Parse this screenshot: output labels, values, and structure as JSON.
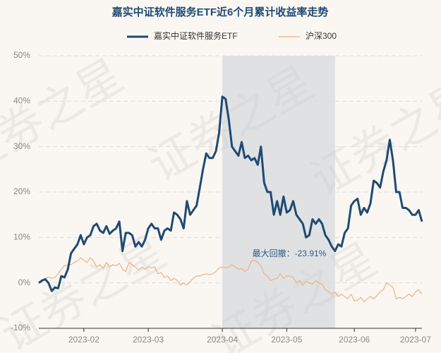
{
  "chart_data": {
    "type": "line",
    "title": "嘉实中证软件服务ETF近6个月累计收益率走势",
    "watermark": "证券之星",
    "legend": "top",
    "grid": true,
    "categories": [
      null,
      null,
      null,
      null,
      null,
      null,
      null,
      null,
      null,
      null,
      null,
      null,
      null,
      null,
      "2023-02",
      null,
      null,
      null,
      null,
      null,
      null,
      null,
      null,
      null,
      null,
      null,
      null,
      null,
      null,
      null,
      null,
      null,
      null,
      null,
      "2023-03",
      null,
      null,
      null,
      null,
      null,
      null,
      null,
      null,
      null,
      null,
      null,
      null,
      null,
      null,
      null,
      null,
      null,
      null,
      null,
      null,
      null,
      null,
      "2023-04",
      null,
      null,
      null,
      null,
      null,
      null,
      null,
      null,
      null,
      null,
      null,
      null,
      null,
      null,
      null,
      null,
      null,
      null,
      null,
      "2023-05",
      null,
      null,
      null,
      null,
      null,
      null,
      null,
      null,
      null,
      null,
      null,
      null,
      null,
      null,
      null,
      null,
      null,
      null,
      null,
      null,
      "2023-06",
      null,
      null,
      null,
      null,
      null,
      null,
      null,
      null,
      null,
      null,
      null,
      null,
      null,
      null,
      null,
      null,
      null,
      null,
      "2023-07",
      null,
      null
    ],
    "ylim": [
      -10,
      50
    ],
    "yticks": [
      {
        "value": -10,
        "label": "-10%"
      },
      {
        "value": 0,
        "label": "0%"
      },
      {
        "value": 10,
        "label": "10%"
      },
      {
        "value": 20,
        "label": "20%"
      },
      {
        "value": 30,
        "label": "30%"
      },
      {
        "value": 40,
        "label": "40%"
      },
      {
        "value": 50,
        "label": "50%"
      }
    ],
    "series": [
      {
        "name": "嘉实中证软件服务ETF",
        "color": "#1f4a73",
        "values": [
          0,
          0.5,
          0.8,
          0,
          -1.8,
          -1,
          -1.2,
          1.5,
          1.2,
          3,
          6.5,
          7.5,
          8.5,
          10.5,
          8.5,
          10,
          10.5,
          12.5,
          13,
          11.5,
          11,
          12.5,
          10.8,
          11.5,
          12,
          13.5,
          7,
          11,
          11,
          10.5,
          8,
          9,
          8,
          9.5,
          12,
          13,
          12,
          12,
          9.5,
          11.5,
          12,
          11.5,
          15.5,
          15,
          14,
          12,
          18,
          15,
          16,
          17,
          21,
          25,
          28.5,
          27.5,
          27.5,
          29,
          33,
          41,
          40.5,
          36,
          30,
          29,
          28,
          31,
          27.5,
          28,
          27,
          27.5,
          26,
          30,
          22,
          20,
          20,
          15,
          18,
          15,
          19,
          15.5,
          16,
          18,
          15,
          14,
          13,
          10,
          10.5,
          14,
          13,
          14,
          13,
          10.5,
          9.5,
          8,
          7,
          8.5,
          8,
          11,
          12,
          17,
          18,
          18.5,
          15,
          16.5,
          15.5,
          17.5,
          22.5,
          22,
          21,
          24.5,
          27,
          31.5,
          27,
          20,
          20,
          16.5,
          16.5,
          16,
          15,
          15,
          16,
          13.5
        ]
      },
      {
        "name": "沪深300",
        "color": "#f0b07f",
        "values": [
          0,
          0.5,
          1,
          1.3,
          1,
          1.2,
          2,
          3,
          3.8,
          4,
          4,
          4.5,
          4.8,
          5.5,
          5,
          4.5,
          5.5,
          4.8,
          3.5,
          4,
          3.2,
          4.5,
          3.5,
          4,
          3.8,
          4.3,
          3,
          2.5,
          4.5,
          4,
          3.5,
          2.8,
          3.5,
          3,
          3.5,
          3.3,
          3.5,
          2,
          2.3,
          1.2,
          1.5,
          0.5,
          1,
          0.5,
          -0.5,
          0,
          -0.5,
          0.3,
          1,
          1.5,
          1.5,
          1.8,
          2,
          1.8,
          2,
          2.5,
          3.3,
          3.5,
          3.3,
          3.5,
          4,
          3.5,
          3,
          3.2,
          2.5,
          3,
          4.8,
          5,
          4.5,
          3.8,
          2,
          1.5,
          0.5,
          0.8,
          1,
          2,
          1,
          1.5,
          1.5,
          1.2,
          0,
          0.5,
          -0.5,
          0.3,
          0,
          -0.3,
          0.5,
          0,
          -0.3,
          -1.5,
          -2,
          -2.5,
          -2,
          -3,
          -2.5,
          -3,
          -3.5,
          -2.5,
          -4,
          -3.8,
          -3.2,
          -4.2,
          -3.5,
          -3,
          -3.5,
          -2.8,
          -2,
          -1.5,
          0,
          -0.5,
          -1,
          -3.5,
          -3.2,
          -3.5,
          -3,
          -2.5,
          -3,
          -2,
          -1.5,
          -2.5
        ]
      }
    ],
    "annotation": "最大回撤：-23.91%",
    "drawdown_range": [
      57,
      92
    ]
  }
}
